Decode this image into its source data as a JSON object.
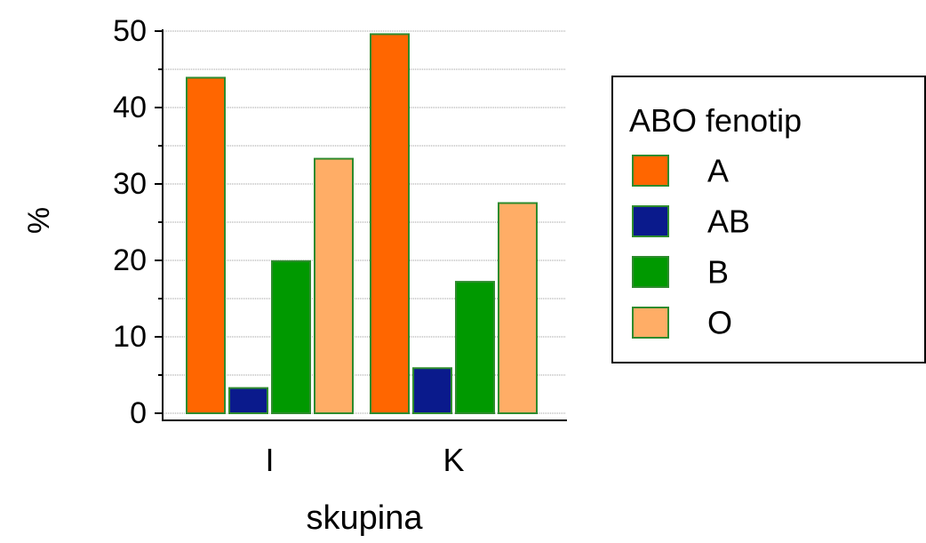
{
  "chart_data": {
    "type": "bar",
    "categories": [
      "I",
      "K"
    ],
    "xlabel": "skupina",
    "ylabel": "%",
    "ylim": [
      0,
      50
    ],
    "yticks": [
      "0",
      "10",
      "20",
      "30",
      "40",
      "50"
    ],
    "grid": true,
    "legend_title": "ABO fenotip",
    "legend_position": "right",
    "series": [
      {
        "name": "A",
        "color": "#FF6600",
        "values": [
          43.9,
          49.6
        ]
      },
      {
        "name": "AB",
        "color": "#0A1A8C",
        "values": [
          3.3,
          5.9
        ]
      },
      {
        "name": "B",
        "color": "#009900",
        "values": [
          19.9,
          17.2
        ]
      },
      {
        "name": "O",
        "color": "#FFAD66",
        "values": [
          33.3,
          27.5
        ]
      }
    ],
    "bar_outline_color": "#2E8B2E"
  }
}
